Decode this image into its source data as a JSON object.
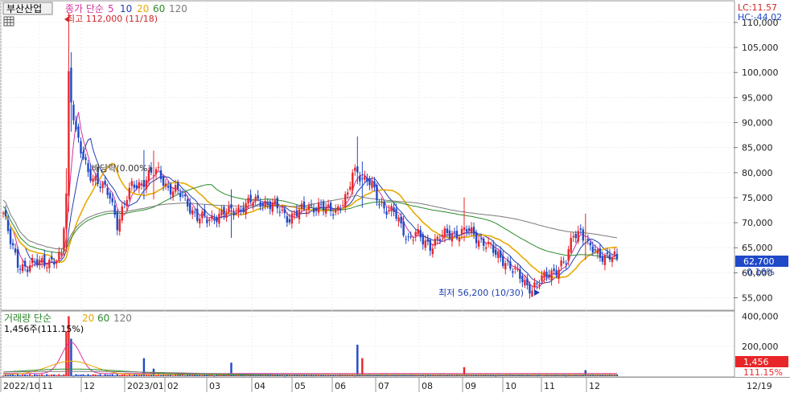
{
  "header": {
    "ticker": "부산산업",
    "price_legend_prefix": "종가 단순",
    "volume_legend_prefix": "거래량 단순",
    "ma_periods": [
      "5",
      "10",
      "20",
      "60",
      "120"
    ],
    "lc": "LC:11.57",
    "hc": "HC:-44.02"
  },
  "annotations": {
    "high": "최고 112,000 (11/18)",
    "low": "최저 56,200 (10/30)",
    "mid": "배당락(0.00%)",
    "volume_now": "1,456주(111.15%)"
  },
  "price_badge": {
    "value": "62,700",
    "change": "-0.16%"
  },
  "volume_badge": {
    "value": "1,456",
    "pct": "111.15%"
  },
  "colors": {
    "up": "#e8262a",
    "down": "#1f49c8",
    "ma5": "#d6329b",
    "ma10": "#1f3fb0",
    "ma20": "#e8a800",
    "ma60": "#2d8a2d",
    "ma120": "#7a7a7a"
  },
  "chart_data": {
    "type": "candlestick",
    "price_axis": {
      "ticks": [
        55000,
        60000,
        65000,
        70000,
        75000,
        80000,
        85000,
        90000,
        95000,
        100000,
        105000,
        110000
      ],
      "tick_labels": [
        "55,000",
        "60,000",
        "65,000",
        "70,000",
        "75,000",
        "80,000",
        "85,000",
        "90,000",
        "95,000",
        "100,000",
        "105,000",
        "110,000"
      ],
      "ylim": [
        53000,
        114000
      ]
    },
    "volume_axis": {
      "ticks": [
        200000,
        400000
      ],
      "tick_labels": [
        "200,000",
        "400,000"
      ],
      "ylim": [
        0,
        430000
      ]
    },
    "x_axis_labels": [
      "2022/10",
      "11",
      "12",
      "2023/01",
      "02",
      "03",
      "04",
      "05",
      "06",
      "07",
      "08",
      "09",
      "10",
      "11",
      "12",
      "12/19"
    ],
    "price_anchors": [
      [
        0,
        72000
      ],
      [
        3,
        66000
      ],
      [
        6,
        62000
      ],
      [
        10,
        61000
      ],
      [
        16,
        62500
      ],
      [
        22,
        62000
      ],
      [
        24,
        63500
      ],
      [
        26,
        76000
      ],
      [
        27,
        100000
      ],
      [
        28,
        95000
      ],
      [
        30,
        88000
      ],
      [
        32,
        84000
      ],
      [
        35,
        80000
      ],
      [
        38,
        79000
      ],
      [
        41,
        77000
      ],
      [
        44,
        75000
      ],
      [
        47,
        70000
      ],
      [
        50,
        74000
      ],
      [
        53,
        77000
      ],
      [
        57,
        78000
      ],
      [
        60,
        79500
      ],
      [
        64,
        80000
      ],
      [
        68,
        77000
      ],
      [
        72,
        76000
      ],
      [
        76,
        74000
      ],
      [
        80,
        71000
      ],
      [
        84,
        70500
      ],
      [
        88,
        71500
      ],
      [
        93,
        72000
      ],
      [
        98,
        73000
      ],
      [
        102,
        74000
      ],
      [
        106,
        74500
      ],
      [
        110,
        73500
      ],
      [
        114,
        72500
      ],
      [
        118,
        71000
      ],
      [
        122,
        72000
      ],
      [
        126,
        73500
      ],
      [
        130,
        73000
      ],
      [
        134,
        72500
      ],
      [
        138,
        73000
      ],
      [
        142,
        75000
      ],
      [
        144,
        80000
      ],
      [
        146,
        80500
      ],
      [
        148,
        79000
      ],
      [
        150,
        78500
      ],
      [
        152,
        77000
      ],
      [
        155,
        74000
      ],
      [
        158,
        73000
      ],
      [
        161,
        72000
      ],
      [
        164,
        69000
      ],
      [
        167,
        67000
      ],
      [
        170,
        68000
      ],
      [
        173,
        66000
      ],
      [
        176,
        65500
      ],
      [
        179,
        67000
      ],
      [
        183,
        67500
      ],
      [
        187,
        68000
      ],
      [
        191,
        68500
      ],
      [
        195,
        67000
      ],
      [
        199,
        66000
      ],
      [
        203,
        63500
      ],
      [
        207,
        62500
      ],
      [
        211,
        60000
      ],
      [
        215,
        58000
      ],
      [
        218,
        57000
      ],
      [
        221,
        58000
      ],
      [
        225,
        60000
      ],
      [
        229,
        61000
      ],
      [
        232,
        62000
      ],
      [
        235,
        68000
      ],
      [
        238,
        68500
      ],
      [
        241,
        65000
      ],
      [
        245,
        64000
      ],
      [
        249,
        63200
      ],
      [
        253,
        62700
      ]
    ],
    "volume_spikes": [
      [
        27,
        400000
      ],
      [
        26,
        300000
      ],
      [
        28,
        250000
      ],
      [
        58,
        120000
      ],
      [
        94,
        90000
      ],
      [
        146,
        210000
      ],
      [
        148,
        120000
      ],
      [
        62,
        50000
      ],
      [
        190,
        60000
      ],
      [
        240,
        40000
      ]
    ],
    "series": [
      {
        "name": "5"
      },
      {
        "name": "10"
      },
      {
        "name": "20"
      },
      {
        "name": "60"
      },
      {
        "name": "120"
      }
    ]
  }
}
